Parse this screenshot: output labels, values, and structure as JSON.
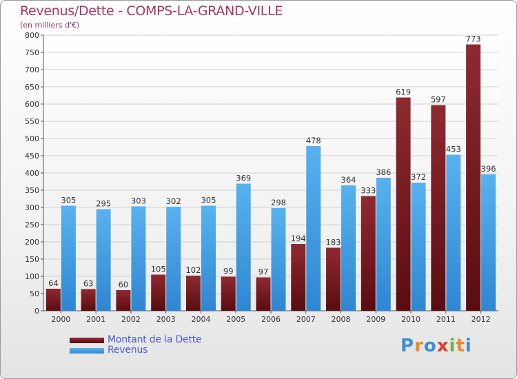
{
  "chart_data": {
    "type": "bar",
    "title": "Revenus/Dette - COMPS-LA-GRAND-VILLE",
    "subtitle": "(en milliers d'€)",
    "categories": [
      "2000",
      "2001",
      "2002",
      "2003",
      "2004",
      "2005",
      "2006",
      "2007",
      "2008",
      "2009",
      "2010",
      "2011",
      "2012"
    ],
    "series": [
      {
        "name": "Montant de la Dette",
        "color": "#7a1a1e",
        "values": [
          64,
          63,
          60,
          105,
          102,
          99,
          97,
          194,
          183,
          333,
          619,
          597,
          773
        ]
      },
      {
        "name": "Revenus",
        "color": "#4aa6e8",
        "values": [
          305,
          295,
          303,
          302,
          305,
          369,
          298,
          478,
          364,
          386,
          372,
          453,
          396
        ]
      }
    ],
    "ylim": [
      0,
      800
    ],
    "yticks": [
      0,
      50,
      100,
      150,
      200,
      250,
      300,
      350,
      400,
      450,
      500,
      550,
      600,
      650,
      700,
      750,
      800
    ],
    "grid": true,
    "legend_position": "bottom-left"
  },
  "logo": {
    "text": "Proxiti",
    "letters": [
      {
        "ch": "P",
        "color": "#3a8fd6"
      },
      {
        "ch": "r",
        "color": "#f08a24"
      },
      {
        "ch": "o",
        "color": "#3a8fd6"
      },
      {
        "ch": "x",
        "color": "#e23a2e"
      },
      {
        "ch": "i",
        "color": "#6bb644"
      },
      {
        "ch": "t",
        "color": "#f08a24"
      },
      {
        "ch": "i",
        "color": "#3a8fd6"
      }
    ]
  }
}
